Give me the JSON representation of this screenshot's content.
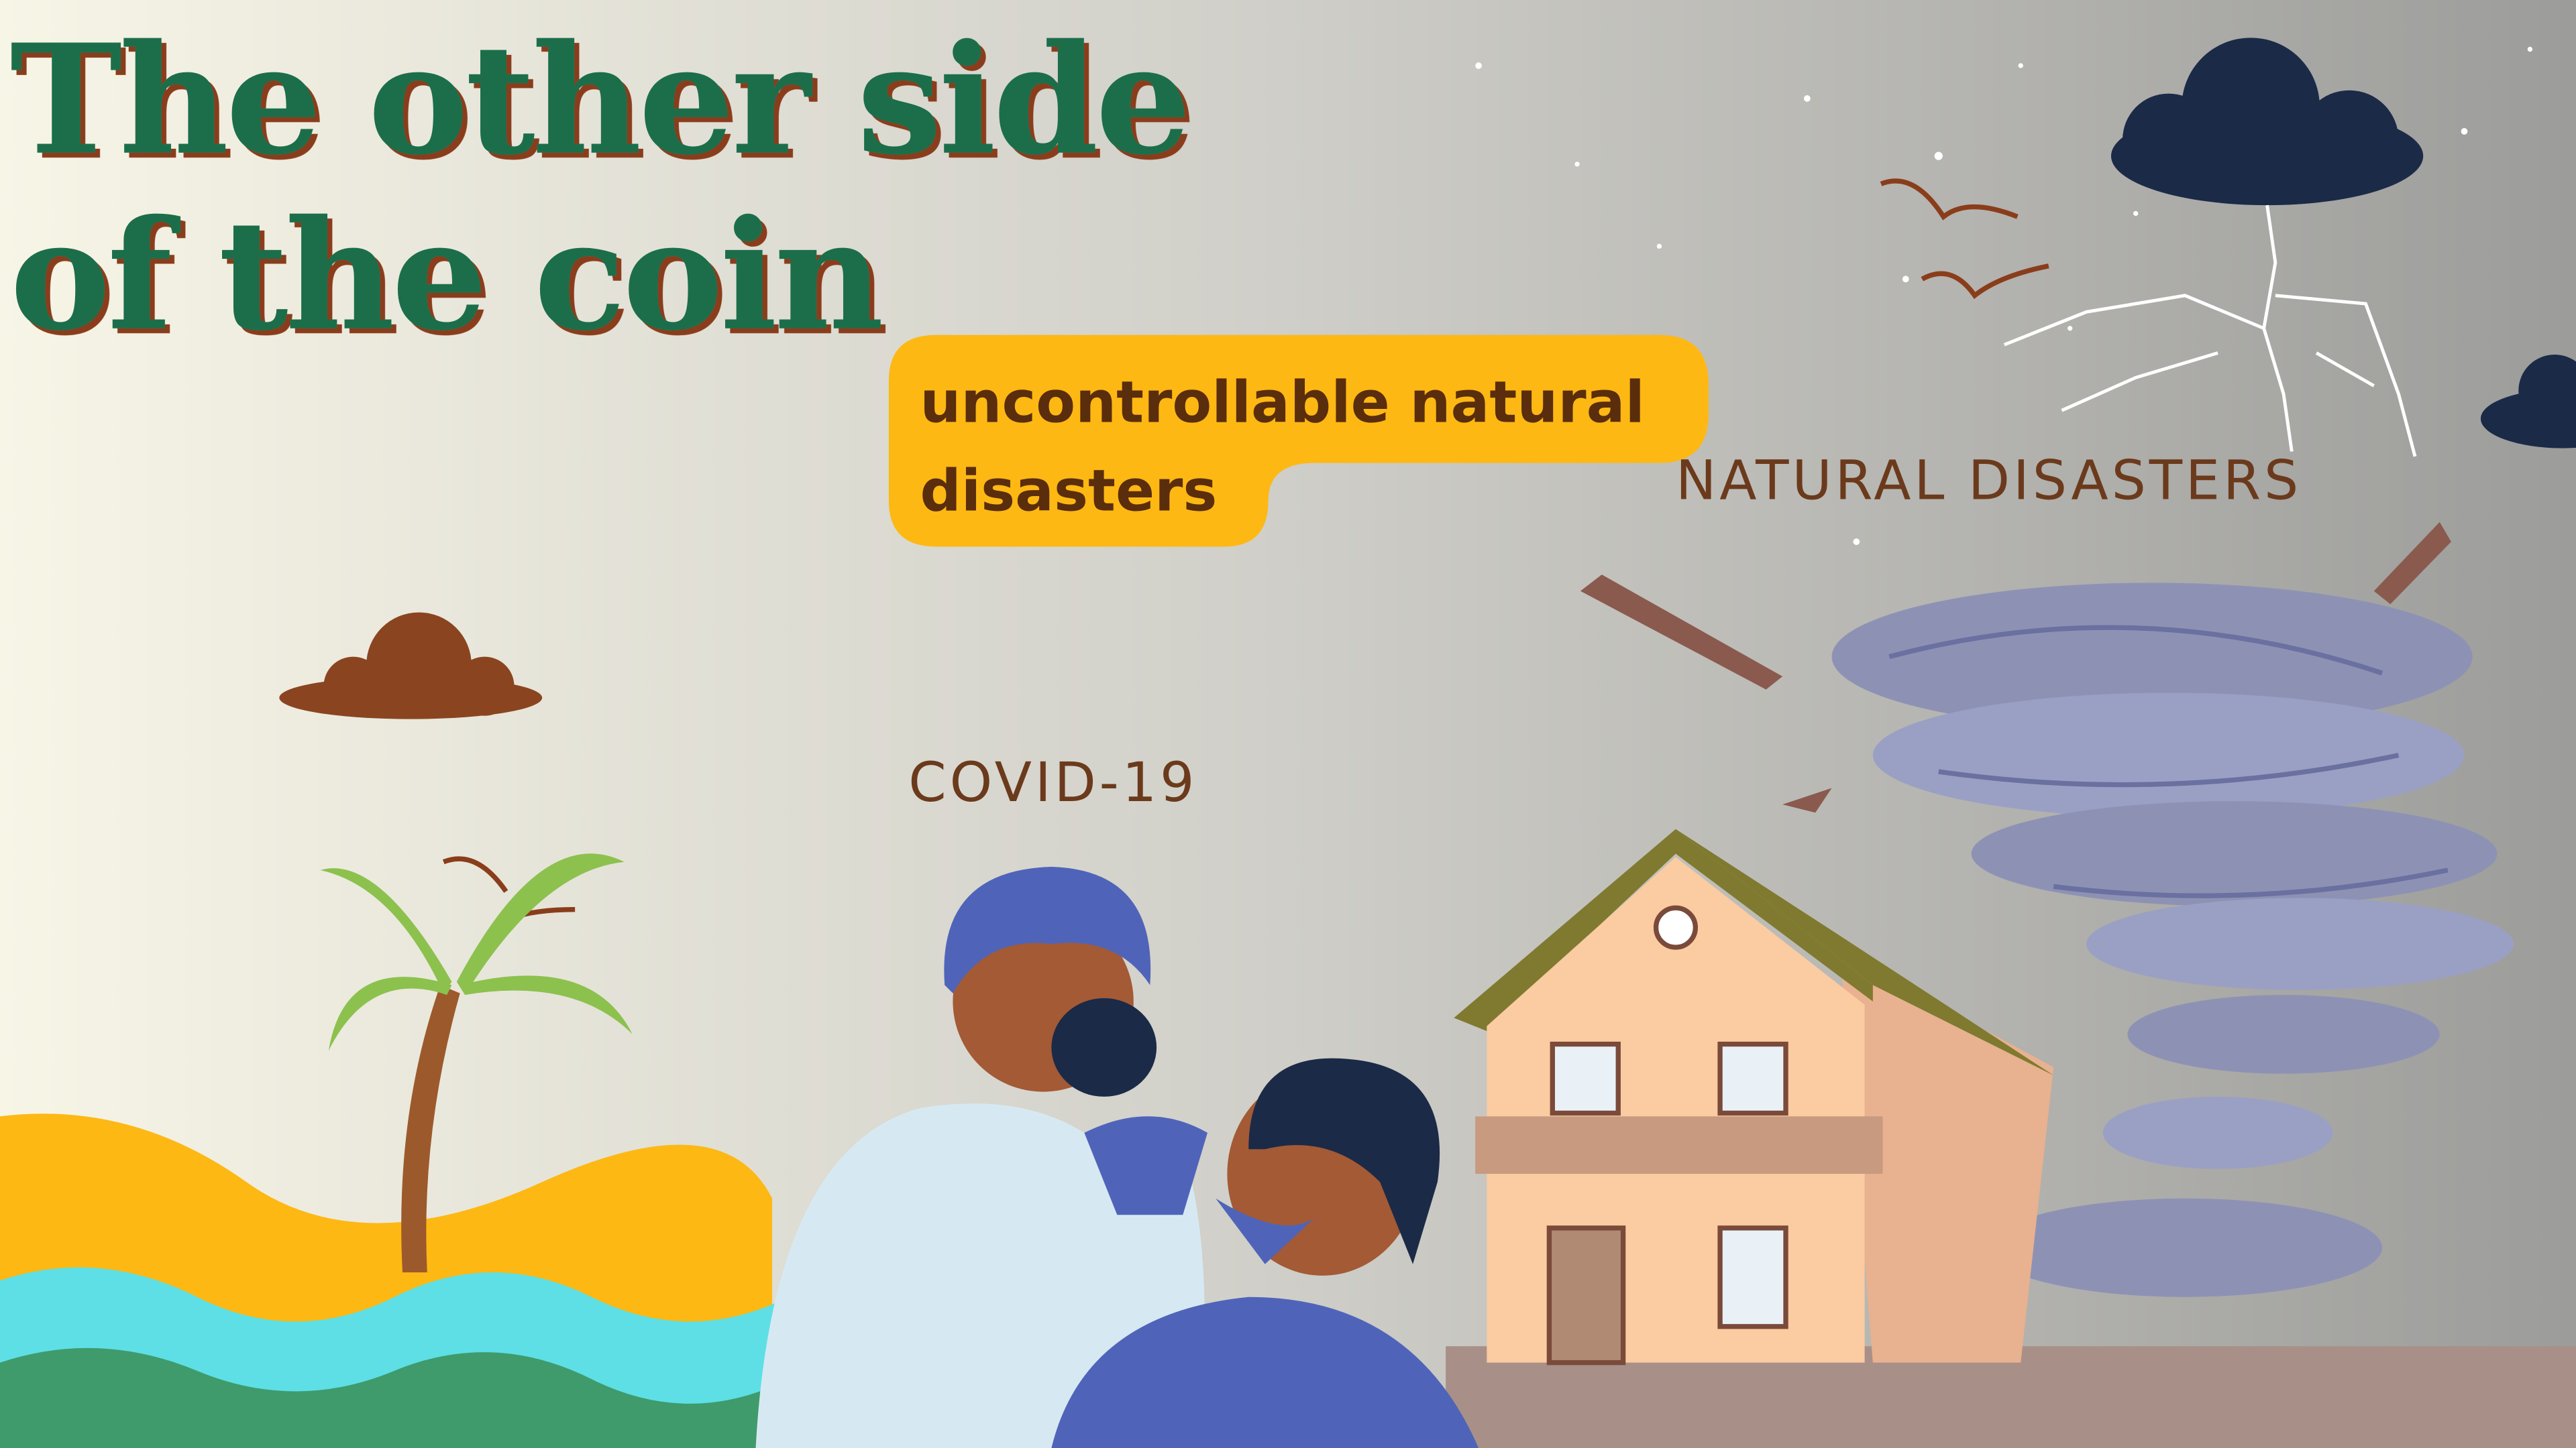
{
  "title": {
    "line1": "The other side",
    "line2": "of the coin"
  },
  "callout": {
    "line1": "uncontrollable natural",
    "line2": "disasters"
  },
  "labels": {
    "natural_disasters": "NATURAL DISASTERS",
    "covid": "COVID-19"
  }
}
